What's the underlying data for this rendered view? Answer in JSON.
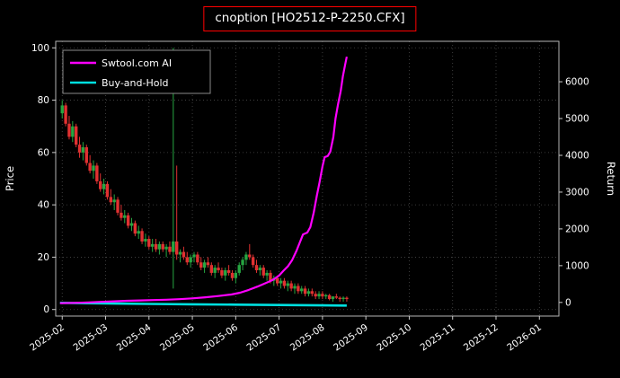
{
  "colors": {
    "background": "#000000",
    "text": "#ffffff",
    "grid": "#4a4a4a",
    "spine": "#b4b4b4",
    "title_border": "#ff0000"
  },
  "chart_data": {
    "type": "mixed-candlestick-line",
    "title": "cnoption [HO2512-P-2250.CFX]",
    "grid": true,
    "legend_position": "upper-left",
    "x_axis": {
      "labels": [
        "2025-02",
        "2025-03",
        "2025-04",
        "2025-05",
        "2025-06",
        "2025-07",
        "2025-08",
        "2025-09",
        "2025-10",
        "2025-11",
        "2025-12",
        "2026-01"
      ],
      "range": [
        -0.15,
        11.45
      ]
    },
    "left_axis": {
      "label": "Price",
      "ticks": [
        0,
        20,
        40,
        60,
        80,
        100
      ],
      "range": [
        -2.5,
        102.5
      ]
    },
    "right_axis": {
      "label": "Return",
      "ticks": [
        0,
        1000,
        2000,
        3000,
        4000,
        5000,
        6000
      ],
      "range": [
        -370,
        7100
      ]
    },
    "candles": {
      "up_color": "#26a641",
      "down_color": "#e03131",
      "data": [
        [
          0.0,
          75,
          80,
          73,
          78
        ],
        [
          0.08,
          78,
          79,
          70,
          71
        ],
        [
          0.16,
          71,
          74,
          65,
          66
        ],
        [
          0.24,
          66,
          72,
          64,
          70
        ],
        [
          0.32,
          70,
          71,
          62,
          63
        ],
        [
          0.4,
          63,
          66,
          58,
          60
        ],
        [
          0.48,
          60,
          64,
          57,
          62
        ],
        [
          0.56,
          62,
          63,
          55,
          56
        ],
        [
          0.64,
          56,
          59,
          52,
          53
        ],
        [
          0.72,
          53,
          57,
          50,
          55
        ],
        [
          0.8,
          55,
          56,
          48,
          49
        ],
        [
          0.88,
          49,
          52,
          45,
          46
        ],
        [
          0.96,
          46,
          50,
          44,
          48
        ],
        [
          1.04,
          48,
          49,
          42,
          43
        ],
        [
          1.12,
          43,
          46,
          40,
          41
        ],
        [
          1.2,
          41,
          44,
          38,
          42
        ],
        [
          1.28,
          42,
          43,
          36,
          37
        ],
        [
          1.36,
          37,
          40,
          34,
          35
        ],
        [
          1.44,
          35,
          38,
          33,
          36
        ],
        [
          1.52,
          36,
          37,
          31,
          32
        ],
        [
          1.6,
          32,
          35,
          30,
          33
        ],
        [
          1.68,
          33,
          34,
          28,
          29
        ],
        [
          1.76,
          29,
          32,
          27,
          30
        ],
        [
          1.84,
          30,
          31,
          25,
          26
        ],
        [
          1.92,
          26,
          29,
          24,
          27
        ],
        [
          2.0,
          27,
          28,
          23,
          24
        ],
        [
          2.08,
          24,
          27,
          22,
          25
        ],
        [
          2.16,
          25,
          27,
          22,
          23
        ],
        [
          2.24,
          23,
          26,
          21,
          25
        ],
        [
          2.32,
          25,
          26,
          22,
          23
        ],
        [
          2.4,
          23,
          25,
          20,
          24
        ],
        [
          2.48,
          24,
          26,
          21,
          22
        ],
        [
          2.56,
          22,
          100,
          8,
          26
        ],
        [
          2.64,
          26,
          55,
          19,
          21
        ],
        [
          2.72,
          21,
          23,
          18,
          22
        ],
        [
          2.8,
          22,
          24,
          19,
          20
        ],
        [
          2.88,
          20,
          22,
          17,
          18
        ],
        [
          2.96,
          18,
          21,
          16,
          20
        ],
        [
          3.04,
          20,
          22,
          18,
          21
        ],
        [
          3.12,
          21,
          22,
          17,
          18
        ],
        [
          3.2,
          18,
          20,
          15,
          16
        ],
        [
          3.28,
          16,
          19,
          14,
          18
        ],
        [
          3.36,
          18,
          20,
          16,
          17
        ],
        [
          3.44,
          17,
          18,
          13,
          14
        ],
        [
          3.52,
          14,
          17,
          12,
          16
        ],
        [
          3.6,
          16,
          18,
          14,
          15
        ],
        [
          3.68,
          15,
          16,
          12,
          13
        ],
        [
          3.76,
          13,
          16,
          11,
          15
        ],
        [
          3.84,
          15,
          17,
          13,
          14
        ],
        [
          3.92,
          14,
          15,
          11,
          12
        ],
        [
          4.0,
          12,
          15,
          10,
          14
        ],
        [
          4.08,
          14,
          18,
          13,
          17
        ],
        [
          4.16,
          17,
          20,
          15,
          19
        ],
        [
          4.24,
          19,
          22,
          17,
          21
        ],
        [
          4.32,
          21,
          25,
          19,
          20
        ],
        [
          4.4,
          20,
          21,
          16,
          17
        ],
        [
          4.48,
          17,
          19,
          14,
          15
        ],
        [
          4.56,
          15,
          17,
          13,
          16
        ],
        [
          4.64,
          16,
          17,
          12,
          13
        ],
        [
          4.72,
          13,
          15,
          11,
          14
        ],
        [
          4.8,
          14,
          15,
          10,
          11
        ],
        [
          4.88,
          11,
          13,
          9,
          12
        ],
        [
          4.96,
          12,
          13,
          9,
          10
        ],
        [
          5.04,
          10,
          12,
          8,
          11
        ],
        [
          5.12,
          11,
          12,
          8,
          9
        ],
        [
          5.2,
          9,
          11,
          7,
          10
        ],
        [
          5.28,
          10,
          11,
          7,
          8
        ],
        [
          5.36,
          8,
          10,
          6,
          9
        ],
        [
          5.44,
          9,
          10,
          6,
          7
        ],
        [
          5.52,
          7,
          9,
          6,
          8
        ],
        [
          5.6,
          8,
          9,
          5,
          6
        ],
        [
          5.68,
          6,
          8,
          5,
          7
        ],
        [
          5.76,
          7,
          8,
          5,
          6
        ],
        [
          5.84,
          6,
          7,
          4,
          5
        ],
        [
          5.92,
          5,
          7,
          4,
          6
        ],
        [
          6.0,
          6,
          7,
          4,
          5
        ],
        [
          6.08,
          5,
          6,
          4,
          5.5
        ],
        [
          6.16,
          5.5,
          6,
          3.5,
          4
        ],
        [
          6.24,
          4,
          5,
          3,
          5
        ],
        [
          6.32,
          5,
          6,
          4,
          4.5
        ],
        [
          6.4,
          4.5,
          5,
          3,
          4
        ],
        [
          6.48,
          4,
          5,
          3,
          4.5
        ],
        [
          6.56,
          4.5,
          5,
          3,
          4
        ]
      ]
    },
    "series": [
      {
        "name": "Swtool.com AI",
        "color": "#ff00ff",
        "axis": "right",
        "width": 2.2,
        "points": [
          [
            -0.05,
            -20
          ],
          [
            0.3,
            -10
          ],
          [
            0.6,
            0
          ],
          [
            0.9,
            15
          ],
          [
            1.2,
            30
          ],
          [
            1.5,
            45
          ],
          [
            1.8,
            55
          ],
          [
            2.1,
            65
          ],
          [
            2.4,
            75
          ],
          [
            2.7,
            90
          ],
          [
            3.0,
            110
          ],
          [
            3.3,
            140
          ],
          [
            3.6,
            175
          ],
          [
            3.9,
            215
          ],
          [
            4.1,
            265
          ],
          [
            4.3,
            340
          ],
          [
            4.5,
            430
          ],
          [
            4.7,
            530
          ],
          [
            4.85,
            610
          ],
          [
            5.0,
            730
          ],
          [
            5.1,
            860
          ],
          [
            5.2,
            980
          ],
          [
            5.3,
            1150
          ],
          [
            5.4,
            1400
          ],
          [
            5.5,
            1700
          ],
          [
            5.55,
            1850
          ],
          [
            5.65,
            1900
          ],
          [
            5.72,
            2050
          ],
          [
            5.8,
            2450
          ],
          [
            5.87,
            2900
          ],
          [
            5.93,
            3250
          ],
          [
            6.0,
            3700
          ],
          [
            6.05,
            3950
          ],
          [
            6.12,
            3980
          ],
          [
            6.18,
            4100
          ],
          [
            6.25,
            4500
          ],
          [
            6.3,
            5000
          ],
          [
            6.36,
            5400
          ],
          [
            6.42,
            5750
          ],
          [
            6.47,
            6150
          ],
          [
            6.52,
            6450
          ],
          [
            6.56,
            6680
          ]
        ]
      },
      {
        "name": "Buy-and-Hold",
        "color": "#00e0e0",
        "axis": "right",
        "width": 2.6,
        "points": [
          [
            -0.05,
            -10
          ],
          [
            1.0,
            -25
          ],
          [
            2.0,
            -40
          ],
          [
            3.0,
            -50
          ],
          [
            4.0,
            -60
          ],
          [
            5.0,
            -70
          ],
          [
            6.0,
            -80
          ],
          [
            6.56,
            -85
          ]
        ]
      }
    ]
  }
}
